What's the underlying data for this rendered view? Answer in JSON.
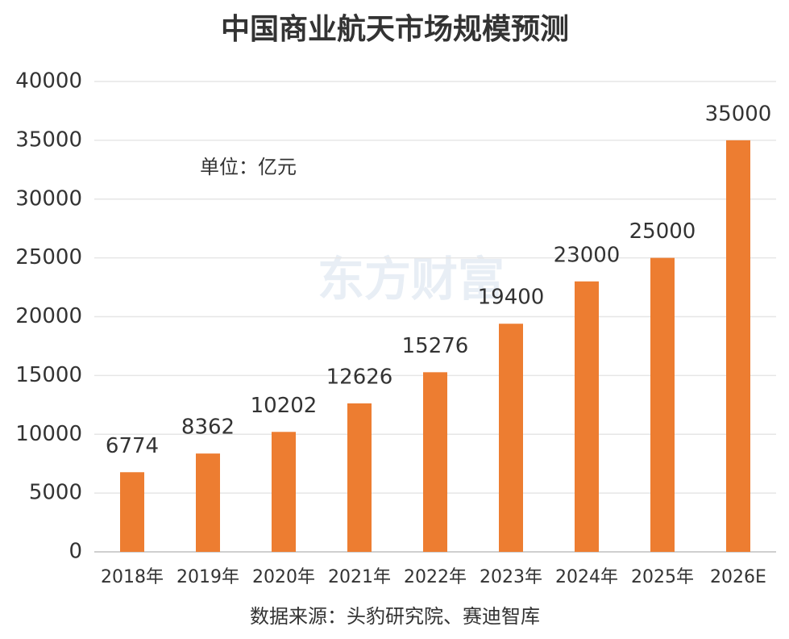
{
  "chart_data": {
    "type": "bar",
    "title": "中国商业航天市场规模预测",
    "annotation": "单位：亿元",
    "source": "数据来源：头豹研究院、赛迪智库",
    "watermark": "东方财富",
    "categories": [
      "2018年",
      "2019年",
      "2020年",
      "2021年",
      "2022年",
      "2023年",
      "2024年",
      "2025年",
      "2026E"
    ],
    "values": [
      6774,
      8362,
      10202,
      12626,
      15276,
      19400,
      23000,
      25000,
      35000
    ],
    "color": "#ED7D31",
    "ylim": [
      0,
      40000
    ],
    "yticks": [
      0,
      5000,
      10000,
      15000,
      20000,
      25000,
      30000,
      35000,
      40000
    ],
    "grid": true
  }
}
